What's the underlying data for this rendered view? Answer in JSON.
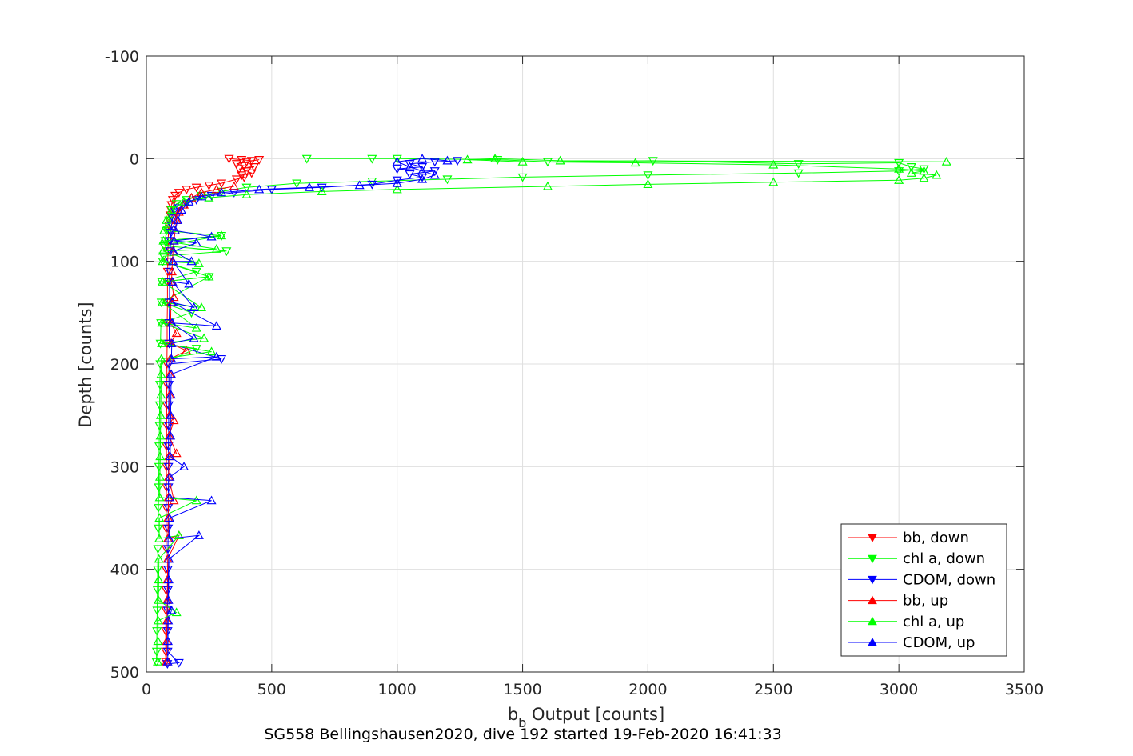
{
  "chart_data": {
    "type": "line",
    "xlabel_main": "b",
    "xlabel_sub": "b",
    "xlabel_rest": " Output [counts]",
    "ylabel": "Depth [counts]",
    "caption": "SG558 Bellingshausen2020, dive 192 started 19-Feb-2020 16:41:33",
    "xlim": [
      0,
      3500
    ],
    "ylim": [
      -100,
      500
    ],
    "y_reversed": true,
    "xticks": [
      0,
      500,
      1000,
      1500,
      2000,
      2500,
      3000,
      3500
    ],
    "yticks": [
      -100,
      0,
      100,
      200,
      300,
      400,
      500
    ],
    "xtick_labels": [
      "0",
      "500",
      "1000",
      "1500",
      "2000",
      "2500",
      "3000",
      "3500"
    ],
    "ytick_labels": [
      "-100",
      "0",
      "100",
      "200",
      "300",
      "400",
      "500"
    ],
    "grid": true,
    "legend_position": "bottom-right",
    "series": [
      {
        "name": "bb, down",
        "color": "#ff0000",
        "marker": "triangle-down",
        "points": [
          [
            330,
            0
          ],
          [
            380,
            1
          ],
          [
            420,
            2
          ],
          [
            450,
            1
          ],
          [
            400,
            3
          ],
          [
            360,
            5
          ],
          [
            390,
            7
          ],
          [
            430,
            8
          ],
          [
            370,
            10
          ],
          [
            400,
            12
          ],
          [
            420,
            14
          ],
          [
            380,
            16
          ],
          [
            390,
            18
          ],
          [
            360,
            20
          ],
          [
            300,
            24
          ],
          [
            250,
            26
          ],
          [
            200,
            28
          ],
          [
            160,
            30
          ],
          [
            130,
            33
          ],
          [
            115,
            36
          ],
          [
            105,
            40
          ],
          [
            100,
            45
          ],
          [
            98,
            50
          ],
          [
            95,
            55
          ],
          [
            92,
            60
          ],
          [
            90,
            65
          ],
          [
            88,
            70
          ],
          [
            87,
            80
          ],
          [
            86,
            90
          ],
          [
            85,
            100
          ],
          [
            85,
            110
          ],
          [
            84,
            120
          ],
          [
            84,
            140
          ],
          [
            83,
            160
          ],
          [
            83,
            180
          ],
          [
            82,
            200
          ],
          [
            82,
            220
          ],
          [
            81,
            240
          ],
          [
            81,
            260
          ],
          [
            80,
            280
          ],
          [
            80,
            300
          ],
          [
            80,
            320
          ],
          [
            79,
            340
          ],
          [
            79,
            360
          ],
          [
            79,
            380
          ],
          [
            78,
            400
          ],
          [
            78,
            420
          ],
          [
            78,
            440
          ],
          [
            77,
            460
          ],
          [
            77,
            480
          ],
          [
            77,
            490
          ]
        ]
      },
      {
        "name": "chl a, down",
        "color": "#00ff00",
        "marker": "triangle-down",
        "points": [
          [
            640,
            0
          ],
          [
            900,
            0
          ],
          [
            1000,
            0
          ],
          [
            1400,
            1
          ],
          [
            1600,
            3
          ],
          [
            2020,
            2
          ],
          [
            2600,
            5
          ],
          [
            3000,
            4
          ],
          [
            3050,
            8
          ],
          [
            3100,
            10
          ],
          [
            3000,
            12
          ],
          [
            2600,
            14
          ],
          [
            2000,
            16
          ],
          [
            1500,
            18
          ],
          [
            1200,
            20
          ],
          [
            900,
            22
          ],
          [
            600,
            24
          ],
          [
            400,
            28
          ],
          [
            300,
            32
          ],
          [
            220,
            36
          ],
          [
            160,
            40
          ],
          [
            120,
            44
          ],
          [
            100,
            50
          ],
          [
            90,
            60
          ],
          [
            80,
            70
          ],
          [
            75,
            80
          ],
          [
            300,
            75
          ],
          [
            70,
            85
          ],
          [
            320,
            90
          ],
          [
            68,
            95
          ],
          [
            65,
            100
          ],
          [
            200,
            110
          ],
          [
            62,
            120
          ],
          [
            250,
            115
          ],
          [
            60,
            140
          ],
          [
            180,
            150
          ],
          [
            58,
            160
          ],
          [
            56,
            180
          ],
          [
            200,
            185
          ],
          [
            55,
            200
          ],
          [
            54,
            220
          ],
          [
            53,
            240
          ],
          [
            52,
            260
          ],
          [
            51,
            280
          ],
          [
            50,
            300
          ],
          [
            49,
            320
          ],
          [
            48,
            340
          ],
          [
            47,
            360
          ],
          [
            46,
            380
          ],
          [
            45,
            400
          ],
          [
            44,
            420
          ],
          [
            43,
            440
          ],
          [
            42,
            460
          ],
          [
            41,
            480
          ],
          [
            40,
            490
          ]
        ]
      },
      {
        "name": "CDOM, down",
        "color": "#0000ff",
        "marker": "triangle-down",
        "points": [
          [
            1240,
            2
          ],
          [
            1150,
            3
          ],
          [
            1050,
            5
          ],
          [
            1100,
            8
          ],
          [
            1000,
            10
          ],
          [
            1150,
            12
          ],
          [
            1050,
            15
          ],
          [
            1100,
            18
          ],
          [
            1000,
            21
          ],
          [
            900,
            25
          ],
          [
            700,
            28
          ],
          [
            500,
            30
          ],
          [
            350,
            33
          ],
          [
            260,
            36
          ],
          [
            200,
            40
          ],
          [
            160,
            44
          ],
          [
            130,
            48
          ],
          [
            115,
            52
          ],
          [
            105,
            58
          ],
          [
            100,
            65
          ],
          [
            98,
            72
          ],
          [
            96,
            80
          ],
          [
            95,
            90
          ],
          [
            94,
            100
          ],
          [
            93,
            110
          ],
          [
            92,
            120
          ],
          [
            92,
            140
          ],
          [
            91,
            160
          ],
          [
            91,
            180
          ],
          [
            300,
            195
          ],
          [
            90,
            200
          ],
          [
            90,
            220
          ],
          [
            89,
            240
          ],
          [
            89,
            260
          ],
          [
            88,
            280
          ],
          [
            88,
            300
          ],
          [
            88,
            320
          ],
          [
            87,
            340
          ],
          [
            87,
            360
          ],
          [
            86,
            380
          ],
          [
            86,
            400
          ],
          [
            86,
            420
          ],
          [
            85,
            440
          ],
          [
            85,
            460
          ],
          [
            85,
            480
          ],
          [
            130,
            491
          ],
          [
            84,
            492
          ]
        ]
      },
      {
        "name": "bb, up",
        "color": "#ff0000",
        "marker": "triangle-up",
        "points": [
          [
            80,
            490
          ],
          [
            81,
            470
          ],
          [
            82,
            450
          ],
          [
            83,
            430
          ],
          [
            84,
            410
          ],
          [
            85,
            390
          ],
          [
            130,
            367
          ],
          [
            86,
            370
          ],
          [
            87,
            350
          ],
          [
            88,
            330
          ],
          [
            110,
            333
          ],
          [
            89,
            310
          ],
          [
            90,
            290
          ],
          [
            120,
            287
          ],
          [
            91,
            270
          ],
          [
            110,
            255
          ],
          [
            92,
            250
          ],
          [
            93,
            230
          ],
          [
            94,
            210
          ],
          [
            95,
            195
          ],
          [
            160,
            187
          ],
          [
            96,
            180
          ],
          [
            120,
            170
          ],
          [
            97,
            160
          ],
          [
            98,
            140
          ],
          [
            110,
            135
          ],
          [
            100,
            120
          ],
          [
            102,
            110
          ],
          [
            104,
            100
          ],
          [
            106,
            90
          ],
          [
            110,
            80
          ],
          [
            115,
            70
          ],
          [
            120,
            60
          ],
          [
            130,
            52
          ],
          [
            150,
            45
          ],
          [
            180,
            38
          ],
          [
            220,
            33
          ],
          [
            280,
            30
          ],
          [
            350,
            27
          ]
        ]
      },
      {
        "name": "chl a, up",
        "color": "#00ff00",
        "marker": "triangle-up",
        "points": [
          [
            45,
            490
          ],
          [
            46,
            470
          ],
          [
            47,
            450
          ],
          [
            120,
            442
          ],
          [
            48,
            430
          ],
          [
            49,
            410
          ],
          [
            50,
            390
          ],
          [
            130,
            367
          ],
          [
            51,
            370
          ],
          [
            52,
            350
          ],
          [
            200,
            333
          ],
          [
            53,
            330
          ],
          [
            54,
            310
          ],
          [
            55,
            290
          ],
          [
            56,
            270
          ],
          [
            57,
            250
          ],
          [
            58,
            230
          ],
          [
            59,
            210
          ],
          [
            60,
            195
          ],
          [
            260,
            188
          ],
          [
            61,
            180
          ],
          [
            230,
            175
          ],
          [
            62,
            160
          ],
          [
            200,
            165
          ],
          [
            63,
            140
          ],
          [
            220,
            145
          ],
          [
            64,
            120
          ],
          [
            250,
            115
          ],
          [
            65,
            100
          ],
          [
            210,
            102
          ],
          [
            66,
            90
          ],
          [
            280,
            88
          ],
          [
            68,
            80
          ],
          [
            300,
            75
          ],
          [
            70,
            70
          ],
          [
            80,
            60
          ],
          [
            100,
            50
          ],
          [
            150,
            42
          ],
          [
            250,
            38
          ],
          [
            400,
            35
          ],
          [
            700,
            32
          ],
          [
            1000,
            30
          ],
          [
            1600,
            27
          ],
          [
            2000,
            25
          ],
          [
            2500,
            23
          ],
          [
            3000,
            21
          ],
          [
            3100,
            19
          ],
          [
            3150,
            16
          ],
          [
            3050,
            14
          ],
          [
            3100,
            12
          ],
          [
            3000,
            10
          ],
          [
            2500,
            6
          ],
          [
            1950,
            4
          ],
          [
            1500,
            3
          ],
          [
            1280,
            1
          ],
          [
            1390,
            0
          ],
          [
            1650,
            2
          ],
          [
            3190,
            3
          ]
        ]
      },
      {
        "name": "CDOM, up",
        "color": "#0000ff",
        "marker": "triangle-up",
        "points": [
          [
            85,
            490
          ],
          [
            86,
            470
          ],
          [
            87,
            450
          ],
          [
            100,
            440
          ],
          [
            88,
            430
          ],
          [
            89,
            410
          ],
          [
            90,
            390
          ],
          [
            210,
            367
          ],
          [
            91,
            370
          ],
          [
            92,
            350
          ],
          [
            260,
            333
          ],
          [
            93,
            330
          ],
          [
            94,
            310
          ],
          [
            150,
            300
          ],
          [
            95,
            290
          ],
          [
            96,
            270
          ],
          [
            97,
            250
          ],
          [
            98,
            230
          ],
          [
            99,
            210
          ],
          [
            280,
            193
          ],
          [
            100,
            195
          ],
          [
            101,
            180
          ],
          [
            190,
            175
          ],
          [
            102,
            160
          ],
          [
            280,
            163
          ],
          [
            103,
            140
          ],
          [
            190,
            145
          ],
          [
            104,
            120
          ],
          [
            170,
            122
          ],
          [
            106,
            100
          ],
          [
            180,
            100
          ],
          [
            108,
            90
          ],
          [
            200,
            82
          ],
          [
            110,
            80
          ],
          [
            260,
            76
          ],
          [
            115,
            70
          ],
          [
            125,
            60
          ],
          [
            140,
            50
          ],
          [
            170,
            42
          ],
          [
            220,
            37
          ],
          [
            300,
            33
          ],
          [
            450,
            30
          ],
          [
            650,
            28
          ],
          [
            850,
            26
          ],
          [
            1000,
            24
          ],
          [
            1100,
            20
          ],
          [
            1150,
            16
          ],
          [
            1100,
            12
          ],
          [
            1050,
            8
          ],
          [
            1000,
            3
          ],
          [
            1100,
            0
          ],
          [
            1200,
            2
          ]
        ]
      }
    ]
  }
}
